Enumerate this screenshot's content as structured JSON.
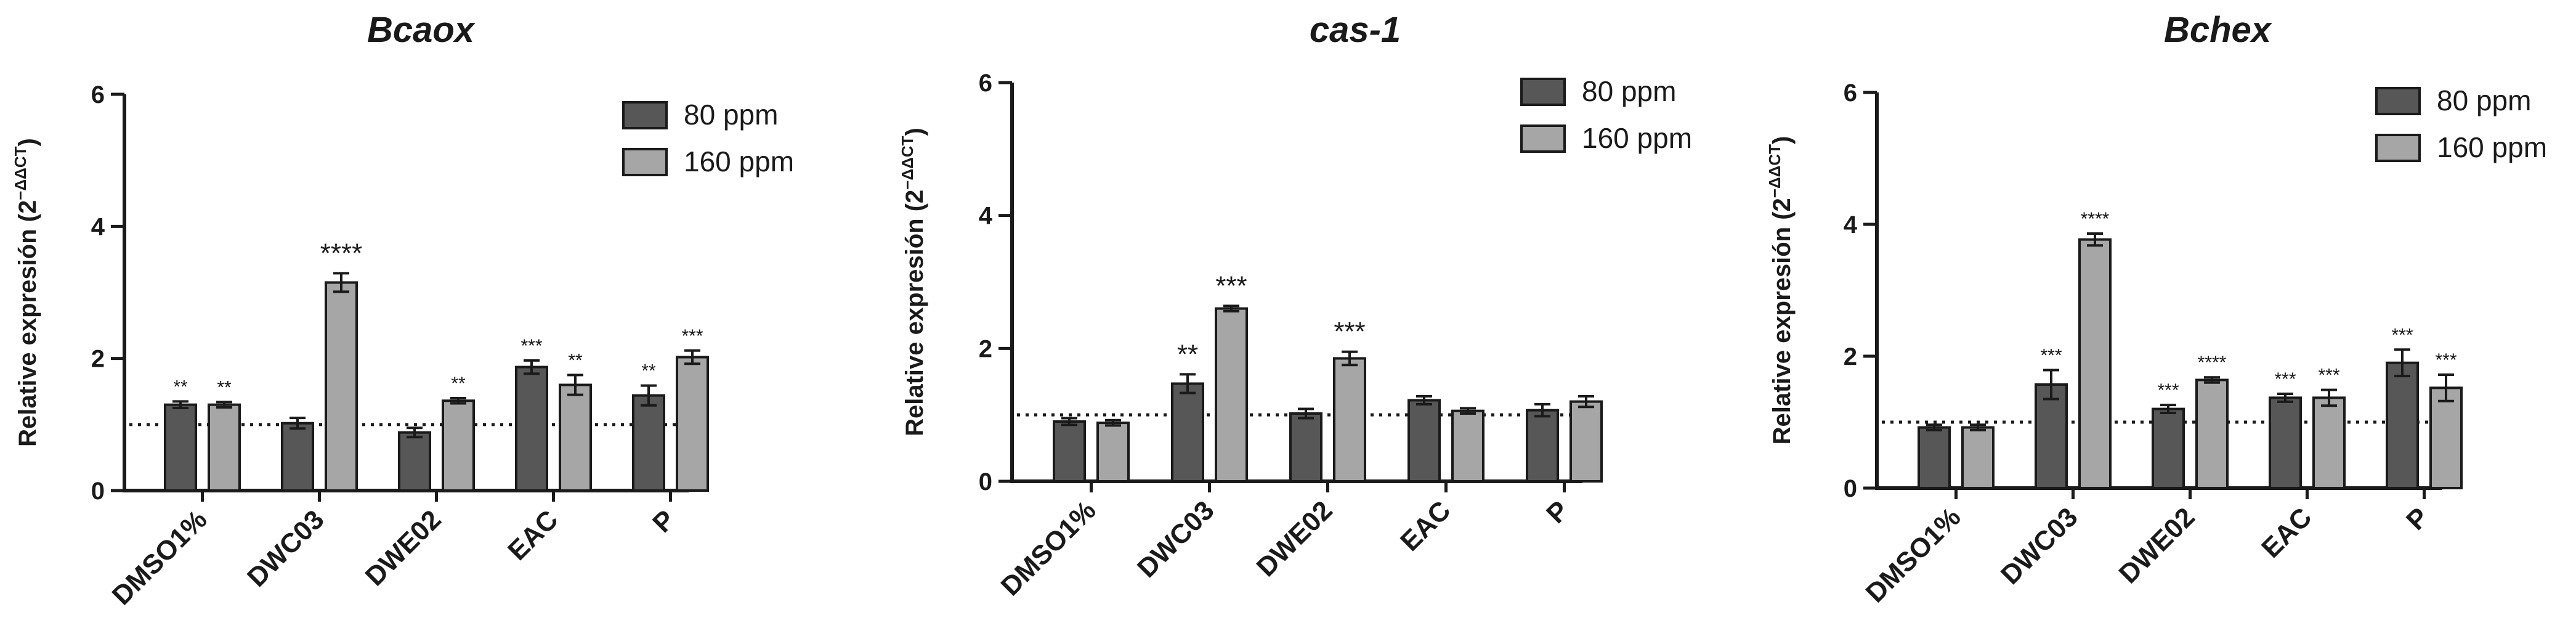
{
  "chart_data": [
    {
      "type": "bar",
      "title": "Bcaox",
      "ylabel_main": "Relative expresión (2",
      "ylabel_sup": "−ΔΔCT",
      "ylabel_close": ")",
      "xlabel": "",
      "ylim": [
        0,
        6
      ],
      "yticks": [
        "0",
        "2",
        "4",
        "6"
      ],
      "reference_line": 1,
      "legend_position": "top-right",
      "categories": [
        "DMSO1%",
        "DWC03",
        "DWE02",
        "EAC",
        "P"
      ],
      "series": [
        {
          "name": "80 ppm",
          "color": "#575757",
          "values": [
            1.3,
            1.02,
            0.88,
            1.87,
            1.44
          ],
          "errors": [
            0.05,
            0.08,
            0.07,
            0.1,
            0.15
          ],
          "significance": [
            "**",
            "",
            "",
            "***",
            "**"
          ]
        },
        {
          "name": "160 ppm",
          "color": "#a6a6a6",
          "values": [
            1.3,
            3.15,
            1.36,
            1.6,
            2.02
          ],
          "errors": [
            0.04,
            0.14,
            0.04,
            0.15,
            0.1
          ],
          "significance": [
            "**",
            "****",
            "**",
            "**",
            "***"
          ]
        }
      ]
    },
    {
      "type": "bar",
      "title": "cas-1",
      "ylabel_main": "Relative expresión (2",
      "ylabel_sup": "−ΔΔCT",
      "ylabel_close": ")",
      "xlabel": "",
      "ylim": [
        0,
        6
      ],
      "yticks": [
        "0",
        "2",
        "4",
        "6"
      ],
      "reference_line": 1,
      "legend_position": "top-right",
      "categories": [
        "DMSO1%",
        "DWC03",
        "DWE02",
        "EAC",
        "P"
      ],
      "series": [
        {
          "name": "80 ppm",
          "color": "#575757",
          "values": [
            0.9,
            1.47,
            1.02,
            1.22,
            1.07
          ],
          "errors": [
            0.05,
            0.14,
            0.07,
            0.06,
            0.09
          ],
          "significance": [
            "",
            "**",
            "",
            "",
            ""
          ]
        },
        {
          "name": "160 ppm",
          "color": "#a6a6a6",
          "values": [
            0.88,
            2.6,
            1.85,
            1.06,
            1.2
          ],
          "errors": [
            0.04,
            0.04,
            0.1,
            0.04,
            0.08
          ],
          "significance": [
            "",
            "***",
            "***",
            "",
            ""
          ]
        }
      ]
    },
    {
      "type": "bar",
      "title": "Bchex",
      "ylabel_main": "Relative expresión (2",
      "ylabel_sup": "−ΔΔCT",
      "ylabel_close": ")",
      "xlabel": "",
      "ylim": [
        0,
        6
      ],
      "yticks": [
        "0",
        "2",
        "4",
        "6"
      ],
      "reference_line": 1,
      "legend_position": "top-right",
      "categories": [
        "DMSO1%",
        "DWC03",
        "DWE02",
        "EAC",
        "P"
      ],
      "series": [
        {
          "name": "80 ppm",
          "color": "#575757",
          "values": [
            0.92,
            1.57,
            1.2,
            1.37,
            1.9
          ],
          "errors": [
            0.04,
            0.22,
            0.06,
            0.06,
            0.2
          ],
          "significance": [
            "",
            "***",
            "***",
            "***",
            "***"
          ]
        },
        {
          "name": "160 ppm",
          "color": "#a6a6a6",
          "values": [
            0.92,
            3.77,
            1.64,
            1.37,
            1.52
          ],
          "errors": [
            0.04,
            0.09,
            0.04,
            0.12,
            0.2
          ],
          "significance": [
            "",
            "****",
            "****",
            "***",
            "***"
          ]
        }
      ]
    }
  ]
}
